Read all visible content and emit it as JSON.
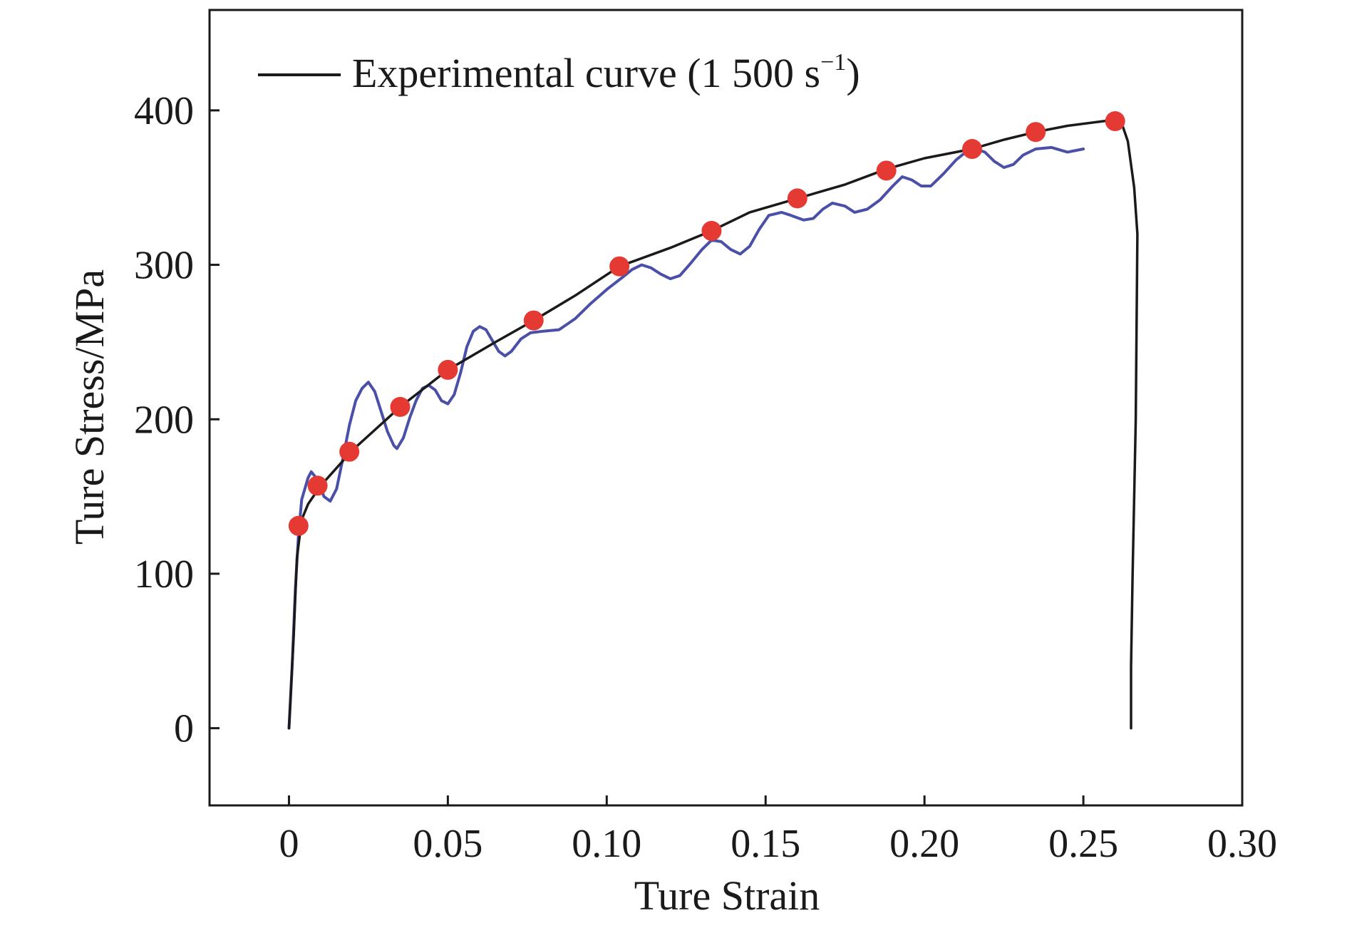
{
  "chart_data": {
    "type": "line",
    "title": "",
    "xlabel": "Ture Strain",
    "ylabel": "Ture Stress/MPa",
    "xlim": [
      -0.025,
      0.3
    ],
    "ylim": [
      -50,
      465
    ],
    "x_ticks": [
      0,
      0.05,
      0.1,
      0.15,
      0.2,
      0.25,
      0.3
    ],
    "x_tick_labels": [
      "0",
      "0.05",
      "0.10",
      "0.15",
      "0.20",
      "0.25",
      "0.30"
    ],
    "y_ticks": [
      0,
      100,
      200,
      300,
      400
    ],
    "y_tick_labels": [
      "0",
      "100",
      "200",
      "300",
      "400"
    ],
    "grid": false,
    "legend_position": "top-left",
    "legend": {
      "label": "Experimental curve (1 500 s",
      "label_sup": "−1",
      "label_tail": ")"
    },
    "colors": {
      "experimental": "#1a1a1a",
      "oscillating": "#4a4fa8",
      "markers": "#e53a33"
    },
    "series": [
      {
        "name": "Experimental curve (1 500 s−1)",
        "role": "experimental",
        "style": "line",
        "points": [
          [
            0.0,
            0
          ],
          [
            0.0015,
            60
          ],
          [
            0.0025,
            110
          ],
          [
            0.004,
            135
          ],
          [
            0.006,
            145
          ],
          [
            0.01,
            157
          ],
          [
            0.02,
            180
          ],
          [
            0.035,
            208
          ],
          [
            0.05,
            232
          ],
          [
            0.065,
            250
          ],
          [
            0.077,
            264
          ],
          [
            0.09,
            280
          ],
          [
            0.104,
            299
          ],
          [
            0.12,
            311
          ],
          [
            0.133,
            322
          ],
          [
            0.145,
            334
          ],
          [
            0.16,
            343
          ],
          [
            0.175,
            352
          ],
          [
            0.188,
            362
          ],
          [
            0.2,
            369
          ],
          [
            0.215,
            375
          ],
          [
            0.225,
            381
          ],
          [
            0.235,
            386
          ],
          [
            0.245,
            390
          ],
          [
            0.26,
            394
          ],
          [
            0.262,
            392
          ],
          [
            0.264,
            380
          ],
          [
            0.266,
            350
          ],
          [
            0.267,
            320
          ],
          [
            0.2665,
            200
          ],
          [
            0.2655,
            100
          ],
          [
            0.265,
            40
          ],
          [
            0.265,
            0
          ]
        ]
      },
      {
        "role": "oscillating",
        "style": "line",
        "points": [
          [
            0.0,
            0
          ],
          [
            0.001,
            40
          ],
          [
            0.002,
            90
          ],
          [
            0.003,
            125
          ],
          [
            0.004,
            148
          ],
          [
            0.006,
            162
          ],
          [
            0.007,
            166
          ],
          [
            0.009,
            161
          ],
          [
            0.011,
            150
          ],
          [
            0.013,
            147
          ],
          [
            0.015,
            155
          ],
          [
            0.017,
            175
          ],
          [
            0.019,
            196
          ],
          [
            0.021,
            212
          ],
          [
            0.023,
            220
          ],
          [
            0.025,
            224
          ],
          [
            0.027,
            218
          ],
          [
            0.029,
            205
          ],
          [
            0.031,
            192
          ],
          [
            0.033,
            183
          ],
          [
            0.034,
            181
          ],
          [
            0.036,
            188
          ],
          [
            0.038,
            201
          ],
          [
            0.04,
            212
          ],
          [
            0.042,
            220
          ],
          [
            0.044,
            222
          ],
          [
            0.046,
            219
          ],
          [
            0.048,
            212
          ],
          [
            0.05,
            210
          ],
          [
            0.052,
            216
          ],
          [
            0.054,
            230
          ],
          [
            0.056,
            247
          ],
          [
            0.058,
            257
          ],
          [
            0.06,
            260
          ],
          [
            0.062,
            258
          ],
          [
            0.064,
            251
          ],
          [
            0.066,
            244
          ],
          [
            0.068,
            241
          ],
          [
            0.07,
            244
          ],
          [
            0.073,
            252
          ],
          [
            0.076,
            256
          ],
          [
            0.08,
            257
          ],
          [
            0.085,
            258
          ],
          [
            0.09,
            265
          ],
          [
            0.095,
            275
          ],
          [
            0.1,
            284
          ],
          [
            0.105,
            292
          ],
          [
            0.108,
            297
          ],
          [
            0.111,
            300
          ],
          [
            0.114,
            298
          ],
          [
            0.117,
            294
          ],
          [
            0.12,
            291
          ],
          [
            0.123,
            293
          ],
          [
            0.126,
            300
          ],
          [
            0.13,
            310
          ],
          [
            0.133,
            316
          ],
          [
            0.136,
            315
          ],
          [
            0.139,
            310
          ],
          [
            0.142,
            307
          ],
          [
            0.145,
            312
          ],
          [
            0.148,
            323
          ],
          [
            0.151,
            332
          ],
          [
            0.155,
            334
          ],
          [
            0.158,
            332
          ],
          [
            0.162,
            329
          ],
          [
            0.165,
            330
          ],
          [
            0.168,
            336
          ],
          [
            0.171,
            340
          ],
          [
            0.175,
            338
          ],
          [
            0.178,
            334
          ],
          [
            0.182,
            336
          ],
          [
            0.186,
            342
          ],
          [
            0.19,
            351
          ],
          [
            0.193,
            357
          ],
          [
            0.196,
            355
          ],
          [
            0.199,
            351
          ],
          [
            0.202,
            351
          ],
          [
            0.206,
            359
          ],
          [
            0.21,
            368
          ],
          [
            0.213,
            373
          ],
          [
            0.216,
            375
          ],
          [
            0.219,
            373
          ],
          [
            0.222,
            367
          ],
          [
            0.225,
            363
          ],
          [
            0.228,
            365
          ],
          [
            0.231,
            371
          ],
          [
            0.235,
            375
          ],
          [
            0.24,
            376
          ],
          [
            0.245,
            373
          ],
          [
            0.25,
            375
          ]
        ]
      },
      {
        "role": "markers",
        "style": "scatter",
        "points": [
          [
            0.003,
            131
          ],
          [
            0.009,
            157
          ],
          [
            0.019,
            179
          ],
          [
            0.035,
            208
          ],
          [
            0.05,
            232
          ],
          [
            0.077,
            264
          ],
          [
            0.104,
            299
          ],
          [
            0.133,
            322
          ],
          [
            0.16,
            343
          ],
          [
            0.188,
            361
          ],
          [
            0.215,
            375
          ],
          [
            0.235,
            386
          ],
          [
            0.26,
            393
          ]
        ]
      }
    ]
  }
}
